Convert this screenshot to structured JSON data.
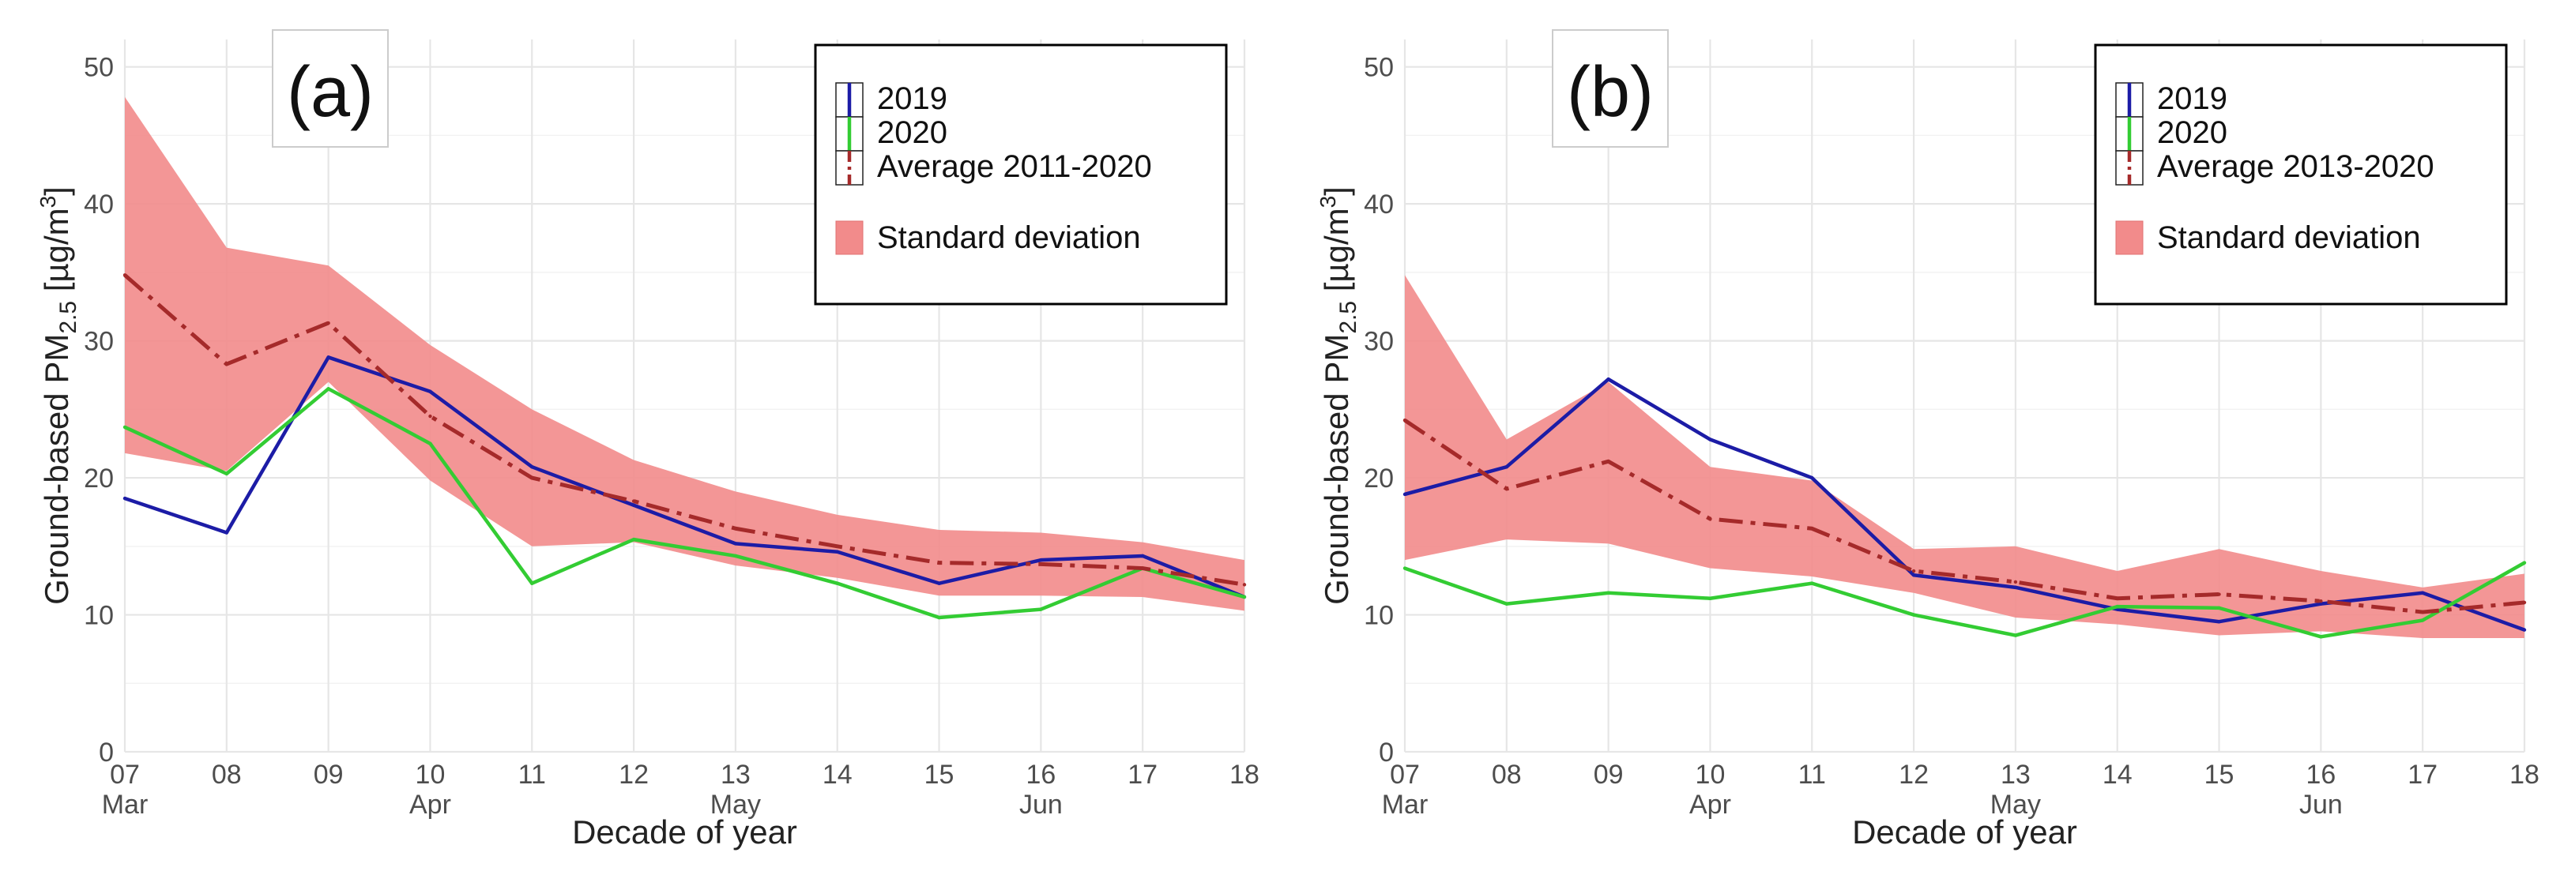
{
  "colors": {
    "y2019": "#1c1ca6",
    "y2020": "#33cc33",
    "average": "#a52a2a",
    "stddev": "#f28b8b",
    "grid": "#ebebeb"
  },
  "chart_data": [
    {
      "type": "line",
      "panel_label": "(a)",
      "xlabel": "Decade of year",
      "ylabel": "Ground-based PM",
      "ylabel_sub": "2.5",
      "ylabel_unit": " [µg/m",
      "ylabel_sup": "3",
      "ylabel_close": "]",
      "x_tick_labels": [
        "07",
        "08",
        "09",
        "10",
        "11",
        "12",
        "13",
        "14",
        "15",
        "16",
        "17",
        "18"
      ],
      "month_labels": [
        {
          "label": "Mar",
          "at": 0
        },
        {
          "label": "Apr",
          "at": 3
        },
        {
          "label": "May",
          "at": 6
        },
        {
          "label": "Jun",
          "at": 9
        }
      ],
      "y_ticks": [
        0,
        10,
        20,
        30,
        40,
        50
      ],
      "ylim": [
        0,
        52
      ],
      "legend": {
        "entries": [
          "2019",
          "2020",
          "Average 2011-2020"
        ],
        "band_label": "Standard deviation",
        "position": "top-right"
      },
      "series": [
        {
          "name": "2019",
          "values": [
            18.5,
            16.0,
            28.8,
            26.3,
            20.8,
            18.0,
            15.2,
            14.6,
            12.3,
            14.0,
            14.3,
            11.3
          ]
        },
        {
          "name": "2020",
          "values": [
            23.7,
            20.3,
            26.5,
            22.5,
            12.3,
            15.5,
            14.3,
            12.3,
            9.8,
            10.4,
            13.4,
            11.3
          ]
        },
        {
          "name": "Average 2011-2020",
          "values": [
            34.8,
            28.3,
            31.3,
            24.5,
            20.0,
            18.3,
            16.3,
            15.0,
            13.8,
            13.7,
            13.4,
            12.2
          ]
        }
      ],
      "band": {
        "name": "Standard deviation",
        "upper": [
          47.8,
          36.8,
          35.5,
          29.7,
          25.0,
          21.3,
          19.0,
          17.3,
          16.2,
          16.0,
          15.3,
          14.0
        ],
        "lower": [
          21.8,
          20.5,
          27.0,
          19.8,
          15.0,
          15.3,
          13.6,
          12.7,
          11.4,
          11.4,
          11.3,
          10.3
        ]
      }
    },
    {
      "type": "line",
      "panel_label": "(b)",
      "xlabel": "Decade of year",
      "ylabel": "Ground-based PM",
      "ylabel_sub": "2.5",
      "ylabel_unit": " [µg/m",
      "ylabel_sup": "3",
      "ylabel_close": "]",
      "x_tick_labels": [
        "07",
        "08",
        "09",
        "10",
        "11",
        "12",
        "13",
        "14",
        "15",
        "16",
        "17",
        "18"
      ],
      "month_labels": [
        {
          "label": "Mar",
          "at": 0
        },
        {
          "label": "Apr",
          "at": 3
        },
        {
          "label": "May",
          "at": 6
        },
        {
          "label": "Jun",
          "at": 9
        }
      ],
      "y_ticks": [
        0,
        10,
        20,
        30,
        40,
        50
      ],
      "ylim": [
        0,
        52
      ],
      "legend": {
        "entries": [
          "2019",
          "2020",
          "Average 2013-2020"
        ],
        "band_label": "Standard deviation",
        "position": "top-right"
      },
      "series": [
        {
          "name": "2019",
          "values": [
            18.8,
            20.8,
            27.2,
            22.8,
            20.0,
            12.9,
            12.0,
            10.4,
            9.5,
            10.8,
            11.6,
            8.9
          ]
        },
        {
          "name": "2020",
          "values": [
            13.4,
            10.8,
            11.6,
            11.2,
            12.3,
            10.0,
            8.5,
            10.6,
            10.5,
            8.4,
            9.6,
            13.8
          ]
        },
        {
          "name": "Average 2013-2020",
          "values": [
            24.2,
            19.2,
            21.2,
            17.0,
            16.3,
            13.2,
            12.4,
            11.2,
            11.5,
            11.0,
            10.2,
            10.9
          ]
        }
      ],
      "band": {
        "name": "Standard deviation",
        "upper": [
          34.8,
          22.8,
          27.0,
          20.8,
          19.8,
          14.8,
          15.0,
          13.2,
          14.8,
          13.2,
          12.0,
          13.0
        ],
        "lower": [
          14.0,
          15.5,
          15.2,
          13.4,
          12.8,
          11.6,
          9.8,
          9.3,
          8.5,
          8.8,
          8.3,
          8.3
        ]
      }
    }
  ]
}
